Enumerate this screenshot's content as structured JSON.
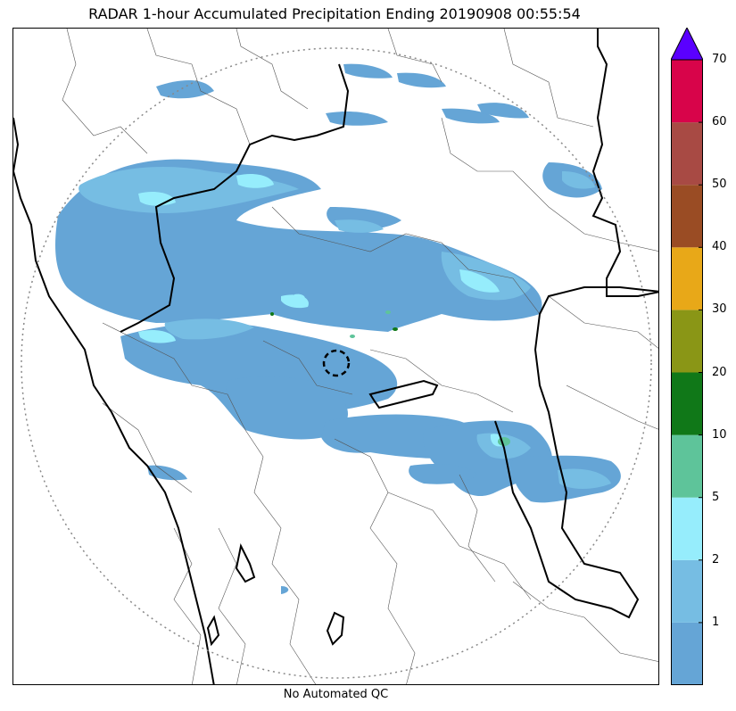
{
  "title": "RADAR 1-hour Accumulated Precipitation Ending 20190908 00:55:54",
  "caption": "No Automated QC",
  "colorbar": {
    "colors": [
      "#65a5d6",
      "#76bde3",
      "#96edfc",
      "#5ec49a",
      "#107818",
      "#8a9616",
      "#e8a818",
      "#9a4c24",
      "#a84a44",
      "#d8044a"
    ],
    "extend_color": "#5a00ff",
    "tick_labels": [
      "1",
      "2",
      "5",
      "10",
      "20",
      "30",
      "40",
      "50",
      "60",
      "70"
    ]
  },
  "radar_site_icon": "dashed-circle-icon",
  "range_ring_icon": "dotted-range-ring"
}
